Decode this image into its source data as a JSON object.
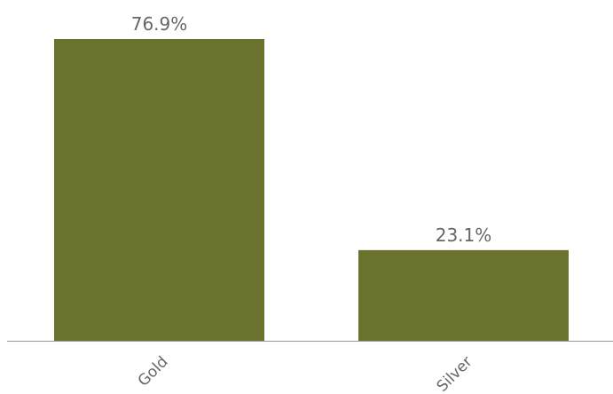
{
  "chart_data": {
    "type": "bar",
    "categories": [
      "Gold",
      "Silver"
    ],
    "values": [
      76.9,
      23.1
    ],
    "data_labels": [
      "76.9%",
      "23.1%"
    ],
    "ylim": [
      0,
      76.9
    ],
    "bar_color": "#6b722e",
    "axis_color": "#999999",
    "grid": false,
    "legend": "none",
    "title": "",
    "xlabel": "",
    "ylabel": ""
  }
}
